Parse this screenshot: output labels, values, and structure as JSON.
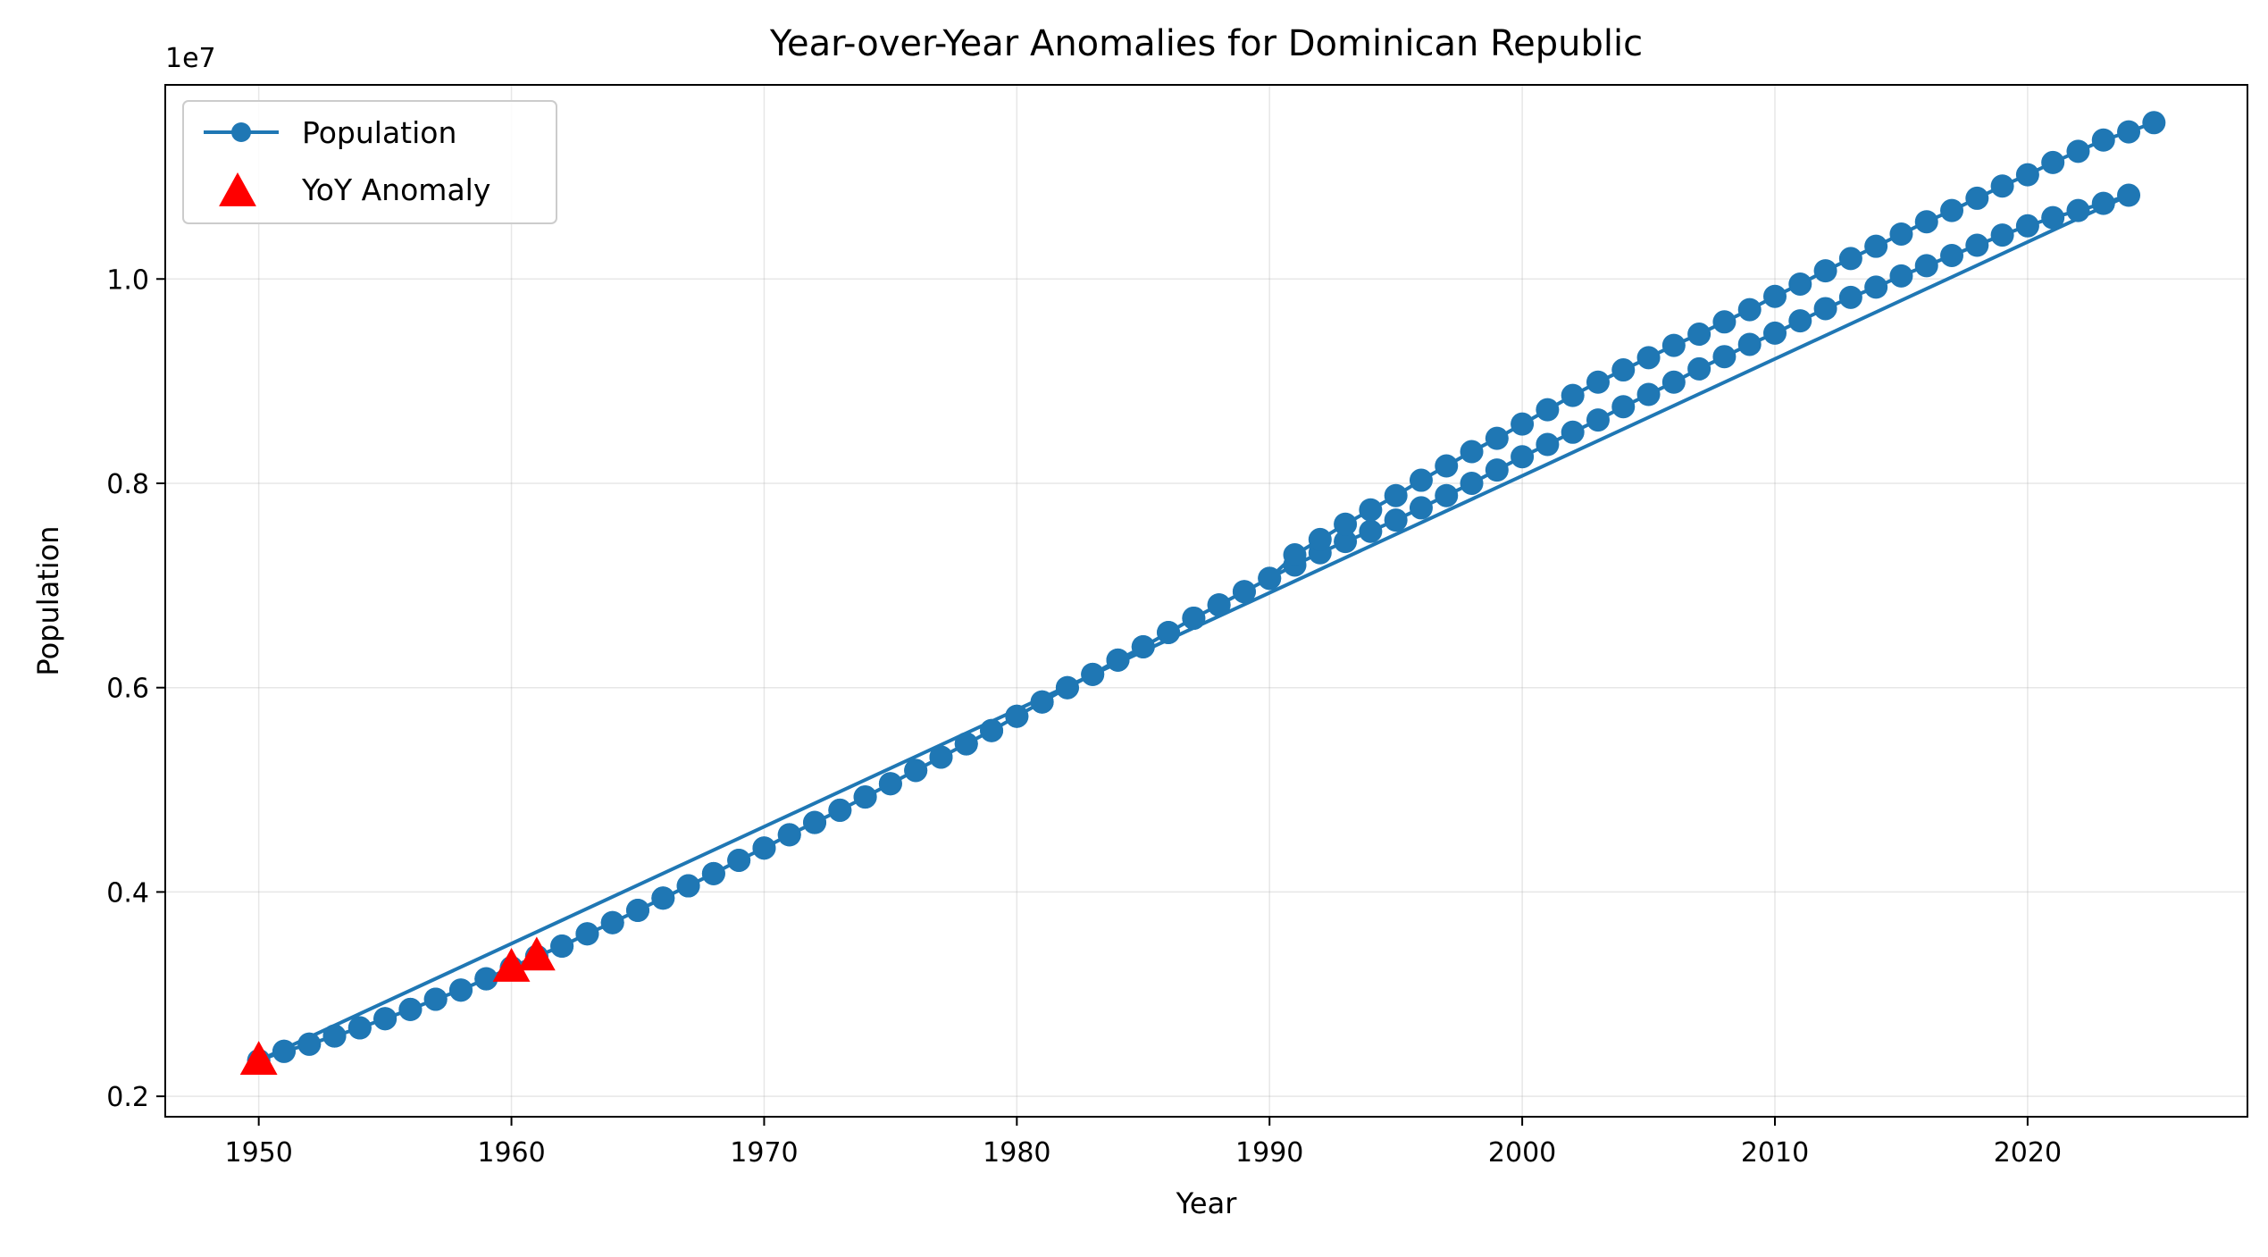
{
  "chart_data": {
    "type": "line",
    "title": "Year-over-Year Anomalies for Dominican Republic",
    "xlabel": "Year",
    "ylabel": "Population",
    "y_offset_label": "1e7",
    "xlim": [
      1946.3,
      2028.7
    ],
    "ylim": [
      1800000,
      11900000
    ],
    "x_ticks": [
      1950,
      1960,
      1970,
      1980,
      1990,
      2000,
      2010,
      2020
    ],
    "x_tick_labels": [
      "1950",
      "1960",
      "1970",
      "1980",
      "1990",
      "2000",
      "2010",
      "2020"
    ],
    "y_ticks": [
      2000000,
      4000000,
      6000000,
      8000000,
      10000000
    ],
    "y_tick_labels": [
      "0.2",
      "0.4",
      "0.6",
      "0.8",
      "1.0"
    ],
    "grid": true,
    "legend_position": "upper-left",
    "series_color": "#1f77b4",
    "anomaly_color": "#ff0000",
    "series": [
      {
        "name": "Population",
        "points": [
          [
            1950,
            2350000
          ],
          [
            1951,
            2440000
          ],
          [
            1952,
            2510000
          ],
          [
            1953,
            2590000
          ],
          [
            1954,
            2670000
          ],
          [
            1955,
            2760000
          ],
          [
            1956,
            2850000
          ],
          [
            1957,
            2950000
          ],
          [
            1958,
            3040000
          ],
          [
            1959,
            3150000
          ],
          [
            1960,
            3260000
          ],
          [
            1961,
            3370000
          ],
          [
            1962,
            3470000
          ],
          [
            1963,
            3590000
          ],
          [
            1964,
            3700000
          ],
          [
            1965,
            3820000
          ],
          [
            1966,
            3940000
          ],
          [
            1967,
            4060000
          ],
          [
            1968,
            4180000
          ],
          [
            1969,
            4310000
          ],
          [
            1970,
            4430000
          ],
          [
            1971,
            4560000
          ],
          [
            1972,
            4680000
          ],
          [
            1973,
            4800000
          ],
          [
            1974,
            4930000
          ],
          [
            1975,
            5060000
          ],
          [
            1976,
            5190000
          ],
          [
            1977,
            5320000
          ],
          [
            1978,
            5450000
          ],
          [
            1979,
            5580000
          ],
          [
            1980,
            5720000
          ],
          [
            1981,
            5860000
          ],
          [
            1982,
            6000000
          ],
          [
            1983,
            6130000
          ],
          [
            1984,
            6270000
          ],
          [
            1985,
            6400000
          ],
          [
            1986,
            6540000
          ],
          [
            1987,
            6680000
          ],
          [
            1988,
            6810000
          ],
          [
            1989,
            6940000
          ],
          [
            1990,
            7070000
          ],
          [
            1991,
            7200000
          ],
          [
            1992,
            7320000
          ],
          [
            1993,
            7430000
          ],
          [
            1994,
            7530000
          ],
          [
            1995,
            7640000
          ],
          [
            1996,
            7760000
          ],
          [
            1997,
            7880000
          ],
          [
            1998,
            8000000
          ],
          [
            1999,
            8130000
          ],
          [
            2000,
            8260000
          ],
          [
            2001,
            8380000
          ],
          [
            2002,
            8500000
          ],
          [
            2003,
            8620000
          ],
          [
            2004,
            8750000
          ],
          [
            2005,
            8870000
          ],
          [
            2006,
            8990000
          ],
          [
            2007,
            9120000
          ],
          [
            2008,
            9240000
          ],
          [
            2009,
            9360000
          ],
          [
            2010,
            9470000
          ],
          [
            2011,
            9590000
          ],
          [
            2012,
            9710000
          ],
          [
            2013,
            9820000
          ],
          [
            2014,
            9920000
          ],
          [
            2015,
            10030000
          ],
          [
            2016,
            10130000
          ],
          [
            2017,
            10230000
          ],
          [
            2018,
            10330000
          ],
          [
            2019,
            10430000
          ],
          [
            2020,
            10520000
          ],
          [
            2021,
            10600000
          ],
          [
            2022,
            10670000
          ],
          [
            2023,
            10740000
          ],
          [
            2024,
            10820000
          ],
          [
            1950,
            2350000
          ],
          [
            1951,
            2440000
          ],
          [
            1952,
            2510000
          ],
          [
            1953,
            2590000
          ],
          [
            1954,
            2670000
          ],
          [
            1955,
            2760000
          ],
          [
            1956,
            2850000
          ],
          [
            1957,
            2950000
          ],
          [
            1958,
            3040000
          ],
          [
            1959,
            3150000
          ],
          [
            1960,
            3260000
          ],
          [
            1961,
            3370000
          ],
          [
            1962,
            3470000
          ],
          [
            1963,
            3590000
          ],
          [
            1964,
            3700000
          ],
          [
            1965,
            3820000
          ],
          [
            1966,
            3940000
          ],
          [
            1967,
            4060000
          ],
          [
            1968,
            4180000
          ],
          [
            1969,
            4310000
          ],
          [
            1970,
            4430000
          ],
          [
            1971,
            4560000
          ],
          [
            1972,
            4680000
          ],
          [
            1973,
            4800000
          ],
          [
            1974,
            4930000
          ],
          [
            1975,
            5060000
          ],
          [
            1976,
            5190000
          ],
          [
            1977,
            5320000
          ],
          [
            1978,
            5450000
          ],
          [
            1979,
            5580000
          ],
          [
            1980,
            5720000
          ],
          [
            1981,
            5860000
          ],
          [
            1982,
            6000000
          ],
          [
            1983,
            6130000
          ],
          [
            1984,
            6270000
          ],
          [
            1985,
            6400000
          ],
          [
            1986,
            6540000
          ],
          [
            1987,
            6680000
          ],
          [
            1988,
            6810000
          ],
          [
            1989,
            6940000
          ],
          [
            1990,
            7070000
          ],
          [
            1991,
            7300000
          ],
          [
            1992,
            7450000
          ],
          [
            1993,
            7600000
          ],
          [
            1994,
            7740000
          ],
          [
            1995,
            7880000
          ],
          [
            1996,
            8030000
          ],
          [
            1997,
            8170000
          ],
          [
            1998,
            8310000
          ],
          [
            1999,
            8440000
          ],
          [
            2000,
            8580000
          ],
          [
            2001,
            8720000
          ],
          [
            2002,
            8860000
          ],
          [
            2003,
            8990000
          ],
          [
            2004,
            9110000
          ],
          [
            2005,
            9230000
          ],
          [
            2006,
            9350000
          ],
          [
            2007,
            9460000
          ],
          [
            2008,
            9580000
          ],
          [
            2009,
            9700000
          ],
          [
            2010,
            9830000
          ],
          [
            2011,
            9950000
          ],
          [
            2012,
            10080000
          ],
          [
            2013,
            10200000
          ],
          [
            2014,
            10320000
          ],
          [
            2015,
            10440000
          ],
          [
            2016,
            10560000
          ],
          [
            2017,
            10670000
          ],
          [
            2018,
            10790000
          ],
          [
            2019,
            10910000
          ],
          [
            2020,
            11020000
          ],
          [
            2021,
            11140000
          ],
          [
            2022,
            11250000
          ],
          [
            2023,
            11360000
          ],
          [
            2024,
            11440000
          ],
          [
            2025,
            11530000
          ]
        ]
      },
      {
        "name": "YoY Anomaly",
        "points": [
          [
            1950,
            2350000
          ],
          [
            1960,
            3260000
          ],
          [
            1961,
            3370000
          ]
        ]
      }
    ]
  }
}
